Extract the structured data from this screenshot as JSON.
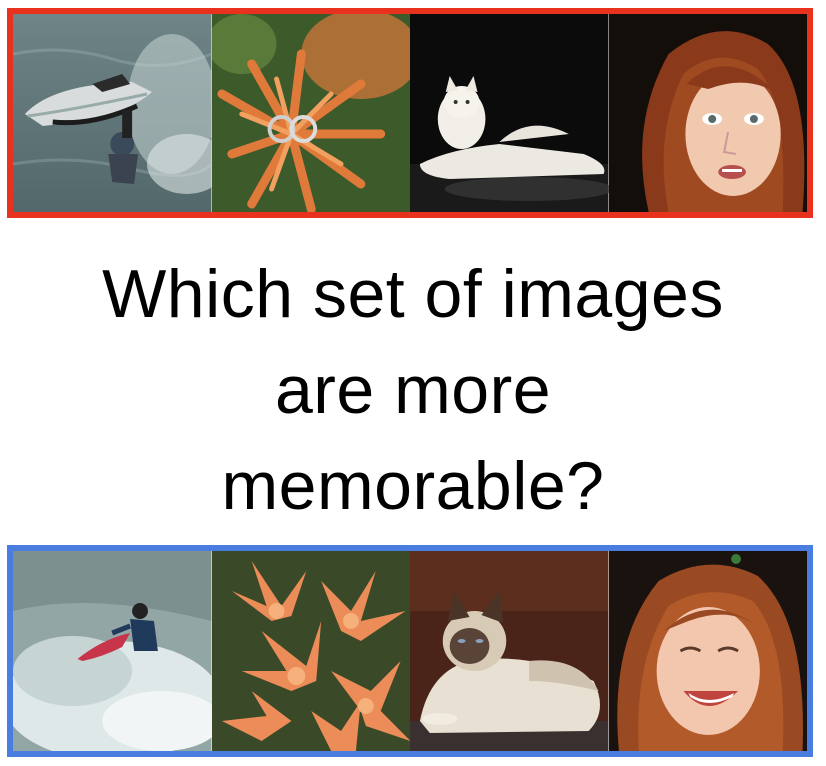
{
  "colors": {
    "top_border": "#e8321e",
    "bottom_border": "#4a7de0"
  },
  "question": {
    "line1": "Which set of images",
    "line2": "are more",
    "line3": "memorable?"
  },
  "top_images": [
    "jet-ski-photo",
    "flower-with-rings-photo",
    "white-cat-photo",
    "red-haired-woman-photo"
  ],
  "bottom_images": [
    "surfer-photo",
    "orange-lilies-photo",
    "siamese-cat-photo",
    "smiling-woman-photo"
  ]
}
